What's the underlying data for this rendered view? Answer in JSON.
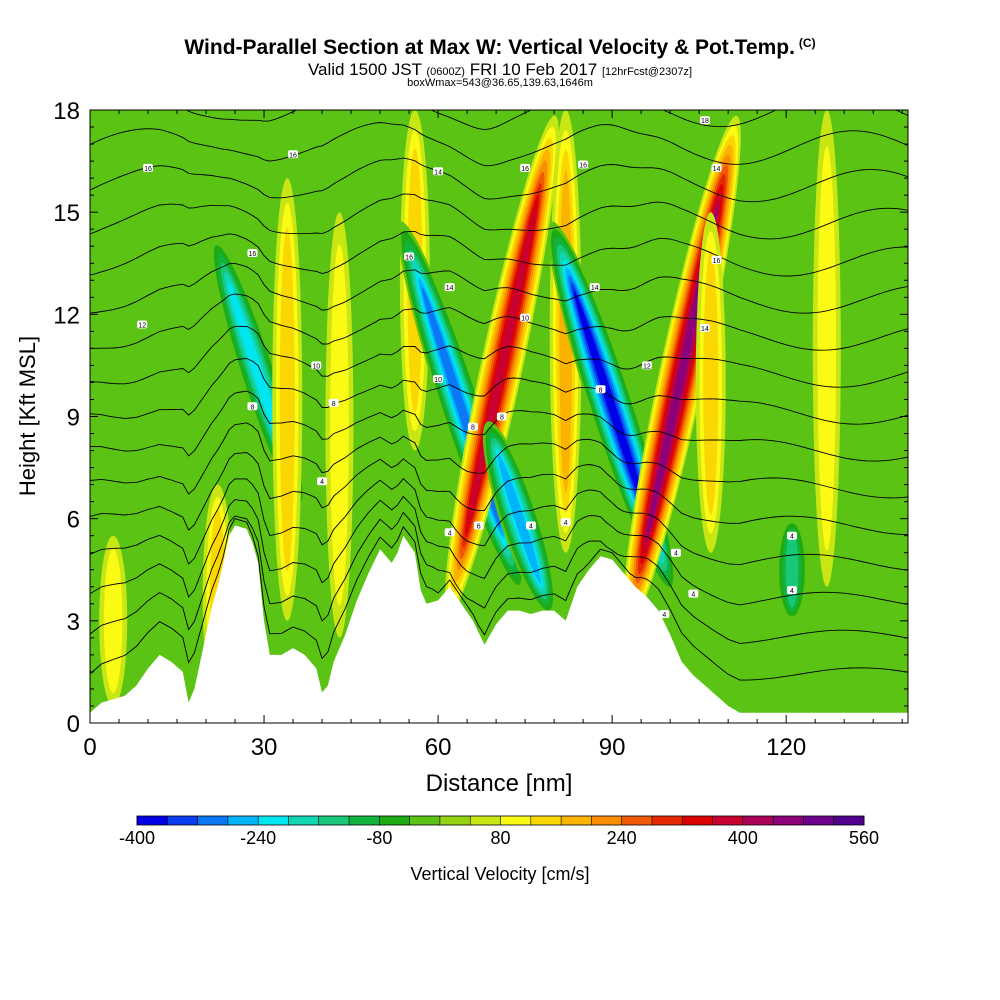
{
  "title": {
    "main": "Wind-Parallel Section at Max W: Vertical Velocity & Pot.Temp.",
    "copyright": "(C)",
    "valid_prefix": "Valid 1500 JST",
    "valid_z": "(0600Z)",
    "valid_date": "FRI 10 Feb 2017",
    "forecast": "[12hrFcst@2307z]",
    "box": "boxWmax=543@36.65,139.63,1646m"
  },
  "chart_data": {
    "type": "heatmap",
    "xlabel": "Distance [nm]",
    "ylabel": "Height [Kft MSL]",
    "xlim": [
      0,
      141
    ],
    "ylim": [
      0,
      18
    ],
    "xticks": [
      0,
      30,
      60,
      90,
      120
    ],
    "yticks": [
      0,
      3,
      6,
      9,
      12,
      15,
      18
    ],
    "colorbar": {
      "label": "Vertical Velocity [cm/s]",
      "min": -400,
      "max": 560,
      "step": 40,
      "tick_values": [
        -400,
        -240,
        -80,
        80,
        240,
        400,
        560
      ],
      "colors": [
        "#0000e6",
        "#0a3cf0",
        "#0a78f5",
        "#00b4fa",
        "#00e6f0",
        "#10d6b4",
        "#18c878",
        "#10b43c",
        "#1eaa14",
        "#5ac314",
        "#96d214",
        "#c8e614",
        "#fafa14",
        "#fad700",
        "#fab400",
        "#fa8c00",
        "#f05a00",
        "#e62800",
        "#dc0000",
        "#c80032",
        "#aa005a",
        "#8c0078",
        "#6e008c",
        "#50008c"
      ]
    },
    "vertical_velocity_features": [
      {
        "x": 4,
        "y_range": [
          0.5,
          5.5
        ],
        "value": 80
      },
      {
        "x": 22,
        "y_range": [
          0.5,
          7
        ],
        "value": 120
      },
      {
        "x": 29,
        "y_range": [
          6,
          14.5
        ],
        "value": -240
      },
      {
        "x": 34,
        "y_range": [
          3,
          16
        ],
        "value": 120
      },
      {
        "x": 43,
        "y_range": [
          2.5,
          15
        ],
        "value": 80
      },
      {
        "x": 56,
        "y_range": [
          8,
          18
        ],
        "value": 120
      },
      {
        "x": 64,
        "y_range": [
          3.5,
          15
        ],
        "value": -320
      },
      {
        "x": 71,
        "y_range": [
          3,
          18
        ],
        "value": 360
      },
      {
        "x": 74,
        "y_range": [
          3,
          9
        ],
        "value": -280
      },
      {
        "x": 82,
        "y_range": [
          5,
          18
        ],
        "value": 160
      },
      {
        "x": 90,
        "y_range": [
          3.5,
          15
        ],
        "value": -400
      },
      {
        "x": 102,
        "y_range": [
          2.5,
          18
        ],
        "value": 420
      },
      {
        "x": 107,
        "y_range": [
          5,
          15
        ],
        "value": 120
      },
      {
        "x": 121,
        "y_range": [
          3,
          6
        ],
        "value": -160
      },
      {
        "x": 127,
        "y_range": [
          4,
          18
        ],
        "value": 80
      }
    ],
    "theta_labels": [
      {
        "x": 10,
        "y": 16.3,
        "text": "16"
      },
      {
        "x": 35,
        "y": 16.7,
        "text": "16"
      },
      {
        "x": 60,
        "y": 16.2,
        "text": "14"
      },
      {
        "x": 75,
        "y": 16.3,
        "text": "16"
      },
      {
        "x": 85,
        "y": 16.4,
        "text": "16"
      },
      {
        "x": 106,
        "y": 17.7,
        "text": "18"
      },
      {
        "x": 108,
        "y": 16.3,
        "text": "14"
      },
      {
        "x": 28,
        "y": 13.8,
        "text": "16"
      },
      {
        "x": 55,
        "y": 13.7,
        "text": "16"
      },
      {
        "x": 62,
        "y": 12.8,
        "text": "14"
      },
      {
        "x": 87,
        "y": 12.8,
        "text": "14"
      },
      {
        "x": 108,
        "y": 13.6,
        "text": "16"
      },
      {
        "x": 9,
        "y": 11.7,
        "text": "12"
      },
      {
        "x": 75,
        "y": 11.9,
        "text": "10"
      },
      {
        "x": 106,
        "y": 11.6,
        "text": "14"
      },
      {
        "x": 39,
        "y": 10.5,
        "text": "10"
      },
      {
        "x": 60,
        "y": 10.1,
        "text": "10"
      },
      {
        "x": 96,
        "y": 10.5,
        "text": "12"
      },
      {
        "x": 28,
        "y": 9.3,
        "text": "8"
      },
      {
        "x": 42,
        "y": 9.4,
        "text": "8"
      },
      {
        "x": 88,
        "y": 9.8,
        "text": "8"
      },
      {
        "x": 66,
        "y": 8.7,
        "text": "8"
      },
      {
        "x": 71,
        "y": 9.0,
        "text": "8"
      },
      {
        "x": 40,
        "y": 7.1,
        "text": "4"
      },
      {
        "x": 62,
        "y": 5.6,
        "text": "4"
      },
      {
        "x": 67,
        "y": 5.8,
        "text": "6"
      },
      {
        "x": 76,
        "y": 5.8,
        "text": "4"
      },
      {
        "x": 82,
        "y": 5.9,
        "text": "4"
      },
      {
        "x": 101,
        "y": 5.0,
        "text": "4"
      },
      {
        "x": 104,
        "y": 3.8,
        "text": "4"
      },
      {
        "x": 99,
        "y": 3.2,
        "text": "4"
      },
      {
        "x": 121,
        "y": 5.5,
        "text": "4"
      },
      {
        "x": 121,
        "y": 3.9,
        "text": "4"
      }
    ]
  }
}
